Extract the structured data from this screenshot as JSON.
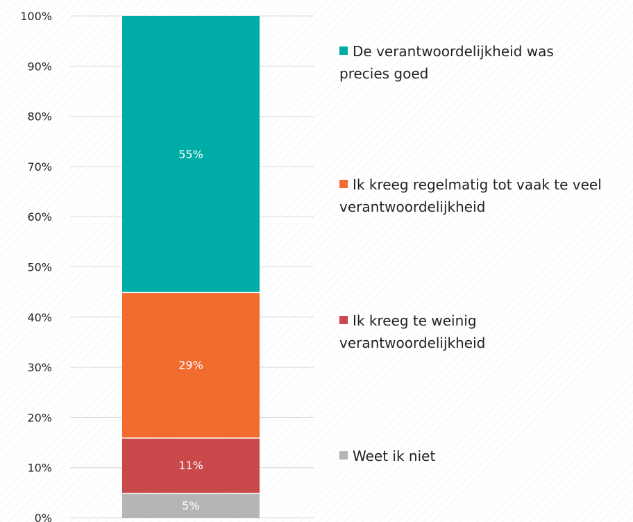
{
  "chart_data": {
    "type": "bar",
    "stacked": true,
    "categories": [
      ""
    ],
    "series": [
      {
        "name": "Weet ik niet",
        "values": [
          5
        ],
        "label": "5%",
        "color": "#b5b5b5"
      },
      {
        "name": "Ik kreeg te weinig verantwoordelijkheid",
        "values": [
          11
        ],
        "label": "11%",
        "color": "#c9484a"
      },
      {
        "name": "Ik kreeg regelmatig tot vaak te veel verantwoordelijkheid",
        "values": [
          29
        ],
        "label": "29%",
        "color": "#f26b2f"
      },
      {
        "name": "De verantwoordelijkheid was precies goed",
        "values": [
          55
        ],
        "label": "55%",
        "color": "#00ada6"
      }
    ],
    "ylim": [
      0,
      100
    ],
    "yticks": [
      0,
      10,
      20,
      30,
      40,
      50,
      60,
      70,
      80,
      90,
      100
    ],
    "ytick_labels": [
      "0%",
      "10%",
      "20%",
      "30%",
      "40%",
      "50%",
      "60%",
      "70%",
      "80%",
      "90%",
      "100%"
    ],
    "legend": {
      "placement": "right",
      "entries": [
        {
          "lines": [
            "De verantwoordelijkheid was",
            "precies goed"
          ],
          "color": "#00ada6"
        },
        {
          "lines": [
            "Ik kreeg regelmatig tot vaak te veel",
            "verantwoordelijkheid"
          ],
          "color": "#f26b2f"
        },
        {
          "lines": [
            "Ik kreeg te weinig",
            "verantwoordelijkheid"
          ],
          "color": "#c9484a"
        },
        {
          "lines": [
            "Weet ik niet"
          ],
          "color": "#b5b5b5"
        }
      ]
    },
    "grid": true,
    "gridColor": "#d9d9d9",
    "title": "",
    "xlabel": "",
    "ylabel": ""
  }
}
